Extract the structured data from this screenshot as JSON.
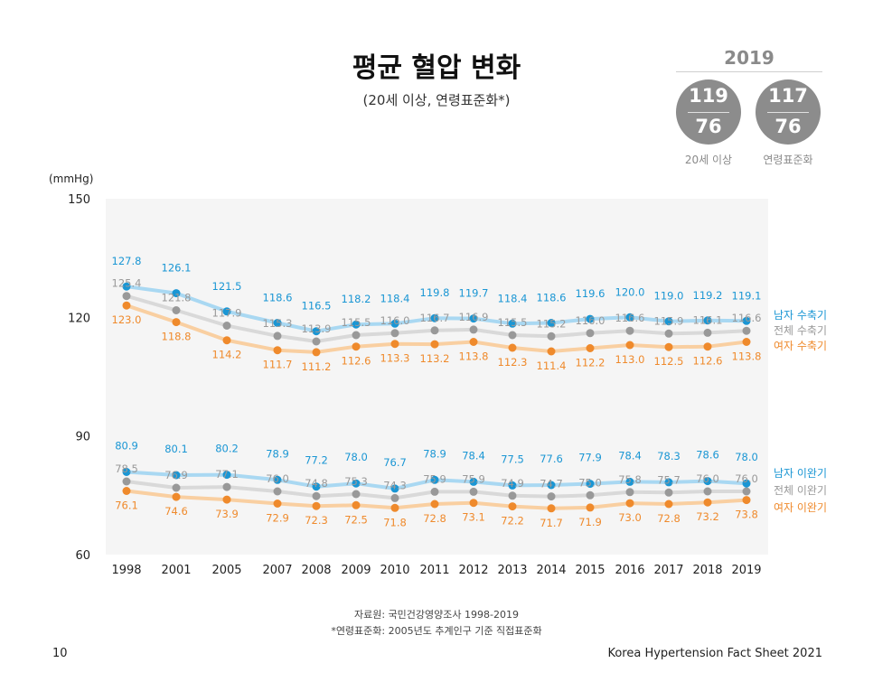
{
  "header": {
    "title": "평균 혈압 변화",
    "subtitle": "(20세 이상, 연령표준화*)"
  },
  "summary": {
    "year": "2019",
    "items": [
      {
        "systolic": "119",
        "diastolic": "76",
        "caption": "20세 이상"
      },
      {
        "systolic": "117",
        "diastolic": "76",
        "caption": "연령표준화"
      }
    ]
  },
  "footer": {
    "source": "자료원: 국민건강영양조사 1998-2019",
    "note": "*연령표준화: 2005년도 추계인구 기준 직접표준화",
    "page_number": "10",
    "publication": "Korea Hypertension Fact Sheet 2021"
  },
  "colors": {
    "male": "#1a96d4",
    "male_line": "#a9d8f2",
    "total": "#999999",
    "total_line": "#d9d9d9",
    "female": "#ef8a2c",
    "female_line": "#f9cfa1",
    "plot_bg": "#f5f5f5"
  },
  "chart_data": {
    "type": "line",
    "ylabel": "(mmHg)",
    "ylim": [
      60,
      150
    ],
    "yticks": [
      60,
      90,
      120,
      150
    ],
    "categories": [
      "1998",
      "2001",
      "2005",
      "2007",
      "2008",
      "2009",
      "2010",
      "2011",
      "2012",
      "2013",
      "2014",
      "2015",
      "2016",
      "2017",
      "2018",
      "2019"
    ],
    "legend_placement": "right",
    "series": [
      {
        "name": "남자 수축기",
        "color_key": "male",
        "marker": true,
        "values": [
          127.8,
          126.1,
          121.5,
          118.6,
          116.5,
          118.2,
          118.4,
          119.8,
          119.7,
          118.4,
          118.6,
          119.6,
          120.0,
          119.0,
          119.2,
          119.1
        ]
      },
      {
        "name": "전체 수축기",
        "color_key": "total",
        "marker": true,
        "values": [
          125.4,
          121.8,
          117.9,
          115.3,
          113.9,
          115.5,
          116.0,
          116.7,
          116.9,
          115.5,
          115.2,
          116.0,
          116.6,
          115.9,
          116.1,
          116.6
        ]
      },
      {
        "name": "여자 수축기",
        "color_key": "female",
        "marker": true,
        "values": [
          123.0,
          118.8,
          114.2,
          111.7,
          111.2,
          112.6,
          113.3,
          113.2,
          113.8,
          112.3,
          111.4,
          112.2,
          113.0,
          112.5,
          112.6,
          113.8
        ]
      },
      {
        "name": "남자 이완기",
        "color_key": "male",
        "marker": true,
        "values": [
          80.9,
          80.1,
          80.2,
          78.9,
          77.2,
          78.0,
          76.7,
          78.9,
          78.4,
          77.5,
          77.6,
          77.9,
          78.4,
          78.3,
          78.6,
          78.0
        ]
      },
      {
        "name": "전체 이완기",
        "color_key": "total",
        "marker": true,
        "values": [
          78.5,
          76.9,
          77.1,
          76.0,
          74.8,
          75.3,
          74.3,
          75.9,
          75.9,
          74.9,
          74.7,
          75.0,
          75.8,
          75.7,
          76.0,
          76.0
        ]
      },
      {
        "name": "여자 이완기",
        "color_key": "female",
        "marker": true,
        "values": [
          76.1,
          74.6,
          73.9,
          72.9,
          72.3,
          72.5,
          71.8,
          72.8,
          73.1,
          72.2,
          71.7,
          71.9,
          73.0,
          72.8,
          73.2,
          73.8
        ]
      }
    ]
  }
}
